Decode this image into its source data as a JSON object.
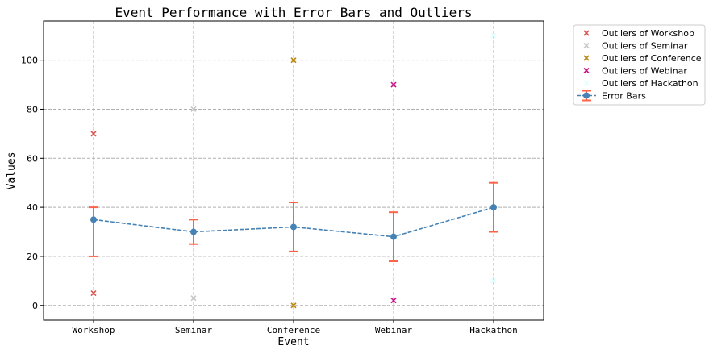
{
  "chart_data": {
    "type": "line",
    "title": "Event Performance with Error Bars and Outliers",
    "xlabel": "Event",
    "ylabel": "Values",
    "categories": [
      "Workshop",
      "Seminar",
      "Conference",
      "Webinar",
      "Hackathon"
    ],
    "ylim": [
      -6,
      116
    ],
    "yticks": [
      0,
      20,
      40,
      60,
      80,
      100
    ],
    "grid": true,
    "legend_position": "outside-top-right",
    "series": [
      {
        "name": "Error Bars",
        "values": [
          35,
          30,
          32,
          28,
          40
        ],
        "error_low": [
          20,
          25,
          22,
          18,
          30
        ],
        "error_high": [
          40,
          35,
          42,
          38,
          50
        ],
        "line_color": "#4682b4",
        "errorbar_color": "#ff6347"
      }
    ],
    "outliers": [
      {
        "name": "Outliers of Workshop",
        "category": "Workshop",
        "values": [
          70,
          5
        ],
        "color": "#d9534f"
      },
      {
        "name": "Outliers of Seminar",
        "category": "Seminar",
        "values": [
          80,
          3
        ],
        "color": "#c8c8c8"
      },
      {
        "name": "Outliers of Conference",
        "category": "Conference",
        "values": [
          100,
          0
        ],
        "color": "#b8860b"
      },
      {
        "name": "Outliers of Webinar",
        "category": "Webinar",
        "values": [
          90,
          2
        ],
        "color": "#c71585"
      },
      {
        "name": "Outliers of Hackathon",
        "category": "Hackathon",
        "values": [
          110,
          10
        ],
        "color": "#e0ffff"
      }
    ]
  }
}
